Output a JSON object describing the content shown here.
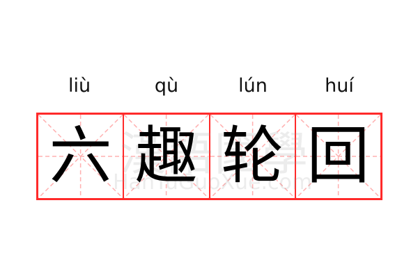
{
  "characters": [
    {
      "pinyin": "liù",
      "hanzi": "六"
    },
    {
      "pinyin": "qù",
      "hanzi": "趣"
    },
    {
      "pinyin": "lún",
      "hanzi": "轮"
    },
    {
      "pinyin": "huí",
      "hanzi": "回"
    }
  ],
  "watermark": {
    "logo": "漢語國學",
    "site": "HanYuGuoXue.com"
  },
  "colors": {
    "grid_border": "#ff2a2a",
    "guide_lines": "#ffb0b0",
    "text": "#000000"
  }
}
